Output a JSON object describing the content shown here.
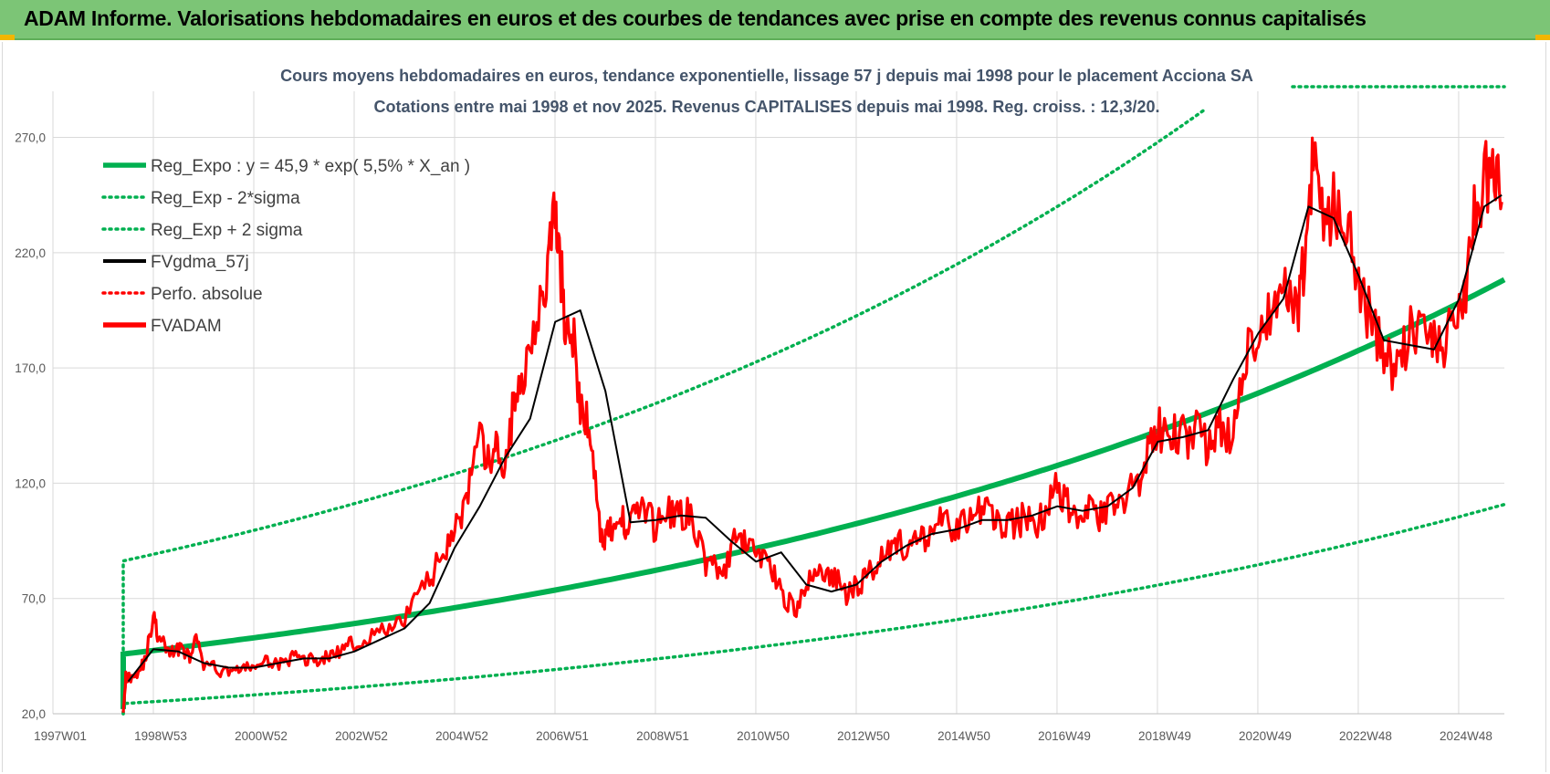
{
  "header": {
    "title": "ADAM Informe. Valorisations hebdomadaires en euros et des courbes de tendances avec prise en compte des revenus connus capitalisés"
  },
  "colors": {
    "banner": "#7cc576",
    "reg_expo": "#00b050",
    "sigma": "#00b050",
    "fvgdma": "#000000",
    "perfo": "#ff0000",
    "fvadam": "#ff0000",
    "grid": "#d9d9d9"
  },
  "chart_data": {
    "type": "line",
    "title_line1": "Cours moyens hebdomadaires en euros, tendance exponentielle, lissage 57 j depuis mai 1998 pour le placement Acciona SA",
    "title_line2": "Cotations entre mai 1998 et nov 2025. Revenus CAPITALISES depuis mai 1998. Reg. croiss. : 12,3/20.",
    "y_ticks": [
      "20,0",
      "70,0",
      "120,0",
      "170,0",
      "220,0",
      "270,0"
    ],
    "x_ticks": [
      "1997W01",
      "1998W53",
      "2000W52",
      "2002W52",
      "2004W52",
      "2006W51",
      "2008W51",
      "2010W50",
      "2012W50",
      "2014W50",
      "2016W49",
      "2018W49",
      "2020W49",
      "2022W48",
      "2024W48"
    ],
    "xlim": [
      1997.0,
      2025.9
    ],
    "ylim": [
      20,
      290
    ],
    "grid": true,
    "legend_position": "top-left",
    "legend": [
      {
        "key": "reg_expo",
        "label": "Reg_Expo : y = 45,9 * exp( 5,5% *  X_an )",
        "style": "solid-thick",
        "color": "#00b050"
      },
      {
        "key": "minus2",
        "label": "Reg_Exp - 2*sigma",
        "style": "dotted",
        "color": "#00b050"
      },
      {
        "key": "plus2",
        "label": "Reg_Exp + 2 sigma",
        "style": "dotted",
        "color": "#00b050"
      },
      {
        "key": "fvgdma",
        "label": "FVgdma_57j",
        "style": "solid",
        "color": "#000000"
      },
      {
        "key": "perfo",
        "label": "Perfo. absolue",
        "style": "dotted",
        "color": "#ff0000"
      },
      {
        "key": "fvadam",
        "label": "FVADAM",
        "style": "solid-thick",
        "color": "#ff0000"
      }
    ],
    "regression": {
      "a": 45.9,
      "rate": 0.055,
      "start_year": 1998.4,
      "end_year": 2025.9,
      "sigma_factor": 1.88
    },
    "series": [
      {
        "name": "FVADAM",
        "x": [
          1998.4,
          1998.45,
          1998.55,
          1998.7,
          1998.85,
          1999.0,
          1999.1,
          1999.25,
          1999.4,
          1999.55,
          1999.7,
          1999.85,
          2000.0,
          2000.2,
          2000.4,
          2000.6,
          2000.8,
          2001.0,
          2001.2,
          2001.4,
          2001.6,
          2001.8,
          2002.0,
          2002.2,
          2002.4,
          2002.6,
          2002.8,
          2003.0,
          2003.3,
          2003.6,
          2003.9,
          2004.2,
          2004.5,
          2004.7,
          2004.9,
          2005.1,
          2005.3,
          2005.5,
          2005.7,
          2005.85,
          2006.0,
          2006.15,
          2006.3,
          2006.5,
          2006.7,
          2006.85,
          2007.0,
          2007.1,
          2007.2,
          2007.35,
          2007.5,
          2007.65,
          2007.8,
          2007.95,
          2008.05,
          2008.15,
          2008.3,
          2008.45,
          2008.6,
          2008.8,
          2009.0,
          2009.2,
          2009.4,
          2009.6,
          2009.8,
          2010.0,
          2010.2,
          2010.4,
          2010.6,
          2010.8,
          2011.0,
          2011.2,
          2011.4,
          2011.6,
          2011.8,
          2012.0,
          2012.2,
          2012.4,
          2012.6,
          2012.8,
          2013.0,
          2013.2,
          2013.4,
          2013.6,
          2013.8,
          2014.0,
          2014.2,
          2014.4,
          2014.6,
          2014.8,
          2015.0,
          2015.2,
          2015.4,
          2015.6,
          2015.8,
          2016.0,
          2016.2,
          2016.4,
          2016.6,
          2016.8,
          2017.0,
          2017.2,
          2017.4,
          2017.6,
          2017.8,
          2018.0,
          2018.2,
          2018.4,
          2018.6,
          2018.8,
          2019.0,
          2019.2,
          2019.4,
          2019.6,
          2019.8,
          2020.0,
          2020.2,
          2020.4,
          2020.6,
          2020.8,
          2021.0,
          2021.2,
          2021.4,
          2021.6,
          2021.8,
          2021.95,
          2022.1,
          2022.3,
          2022.5,
          2022.7,
          2022.9,
          2023.1,
          2023.3,
          2023.5,
          2023.7,
          2023.9,
          2024.1,
          2024.3,
          2024.5,
          2024.7,
          2024.9,
          2025.1,
          2025.3,
          2025.5,
          2025.7,
          2025.85
        ],
        "values": [
          22,
          36,
          36,
          38,
          44,
          63,
          52,
          49,
          46,
          50,
          44,
          52,
          41,
          40,
          38,
          40,
          39,
          41,
          42,
          43,
          41,
          45,
          44,
          43,
          44,
          46,
          48,
          51,
          53,
          56,
          58,
          70,
          78,
          87,
          97,
          104,
          118,
          138,
          128,
          135,
          125,
          150,
          160,
          185,
          200,
          210,
          238,
          215,
          190,
          185,
          150,
          148,
          120,
          92,
          105,
          95,
          105,
          102,
          110,
          108,
          100,
          110,
          105,
          108,
          100,
          85,
          84,
          82,
          96,
          93,
          90,
          89,
          78,
          70,
          65,
          74,
          84,
          80,
          78,
          72,
          75,
          80,
          86,
          92,
          95,
          90,
          94,
          97,
          103,
          102,
          100,
          104,
          107,
          110,
          104,
          102,
          103,
          105,
          103,
          108,
          120,
          111,
          107,
          110,
          103,
          108,
          112,
          115,
          120,
          132,
          145,
          138,
          142,
          140,
          150,
          132,
          145,
          140,
          155,
          175,
          185,
          195,
          190,
          206,
          200,
          220,
          263,
          235,
          240,
          236,
          220,
          200,
          186,
          180,
          170,
          180,
          190,
          185,
          182,
          178,
          190,
          200,
          240,
          250,
          262,
          242
        ]
      },
      {
        "name": "FVgdma_57j",
        "x": [
          1998.5,
          1999.0,
          1999.5,
          2000.0,
          2000.5,
          2001.0,
          2001.5,
          2002.0,
          2002.5,
          2003.0,
          2003.5,
          2004.0,
          2004.5,
          2005.0,
          2005.5,
          2006.0,
          2006.5,
          2007.0,
          2007.5,
          2008.0,
          2008.5,
          2009.0,
          2009.5,
          2010.0,
          2010.5,
          2011.0,
          2011.5,
          2012.0,
          2012.5,
          2013.0,
          2013.5,
          2014.0,
          2014.5,
          2015.0,
          2015.5,
          2016.0,
          2016.5,
          2017.0,
          2017.5,
          2018.0,
          2018.5,
          2019.0,
          2019.5,
          2020.0,
          2020.5,
          2021.0,
          2021.5,
          2022.0,
          2022.5,
          2023.0,
          2023.5,
          2024.0,
          2024.5,
          2025.0,
          2025.5,
          2025.85
        ],
        "values": [
          34,
          48,
          47,
          42,
          40,
          40,
          42,
          44,
          44,
          47,
          52,
          57,
          68,
          92,
          110,
          131,
          148,
          190,
          195,
          160,
          103,
          104,
          106,
          105,
          95,
          86,
          90,
          76,
          73,
          76,
          86,
          93,
          98,
          100,
          104,
          104,
          106,
          110,
          108,
          110,
          118,
          138,
          140,
          143,
          165,
          185,
          200,
          240,
          235,
          210,
          182,
          180,
          178,
          200,
          240,
          245
        ]
      }
    ]
  }
}
